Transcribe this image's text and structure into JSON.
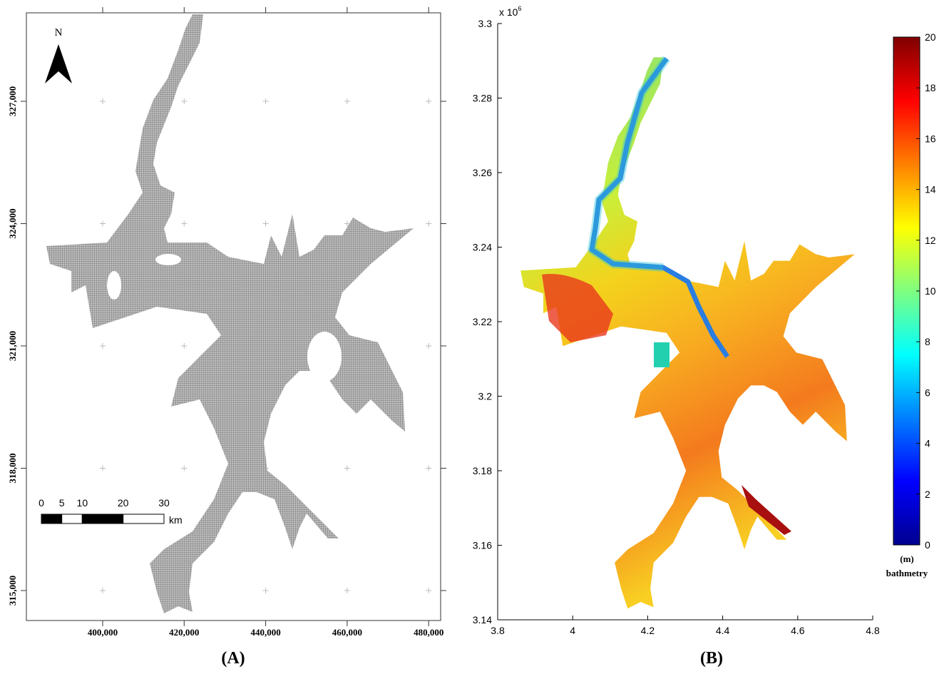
{
  "panel_a": {
    "caption": "(A)",
    "north_label": "N",
    "xlim": [
      381280,
      482940
    ],
    "ylim": [
      314265,
      329170
    ],
    "xticks": [
      {
        "value": 400000,
        "label": "400,000"
      },
      {
        "value": 420000,
        "label": "420,000"
      },
      {
        "value": 440000,
        "label": "440,000"
      },
      {
        "value": 460000,
        "label": "460,000"
      },
      {
        "value": 480000,
        "label": "480,000"
      }
    ],
    "yticks": [
      {
        "value": 315000,
        "label": "315,000"
      },
      {
        "value": 318000,
        "label": "318,000"
      },
      {
        "value": 321000,
        "label": "321,000"
      },
      {
        "value": 324000,
        "label": "324,000"
      },
      {
        "value": 327000,
        "label": "327,000"
      }
    ],
    "scale_bar": {
      "ticks": [
        0,
        5,
        10,
        20,
        30
      ],
      "unit": "km"
    }
  },
  "panel_b": {
    "caption": "(B)",
    "xlim": [
      3.8,
      4.8
    ],
    "ylim": [
      3.14,
      3.3
    ],
    "xticks": [
      3.8,
      4,
      4.2,
      4.4,
      4.6,
      4.8
    ],
    "yticks": [
      3.14,
      3.16,
      3.18,
      3.2,
      3.22,
      3.24,
      3.26,
      3.28,
      3.3
    ],
    "multiplier": {
      "base": "x 10",
      "exponent": "6"
    },
    "colorbar": {
      "lim": [
        0,
        20
      ],
      "ticks": [
        0,
        2,
        4,
        6,
        8,
        10,
        12,
        14,
        16,
        18,
        20
      ],
      "unit_label": "(m)",
      "label": "bathmetry"
    }
  }
}
